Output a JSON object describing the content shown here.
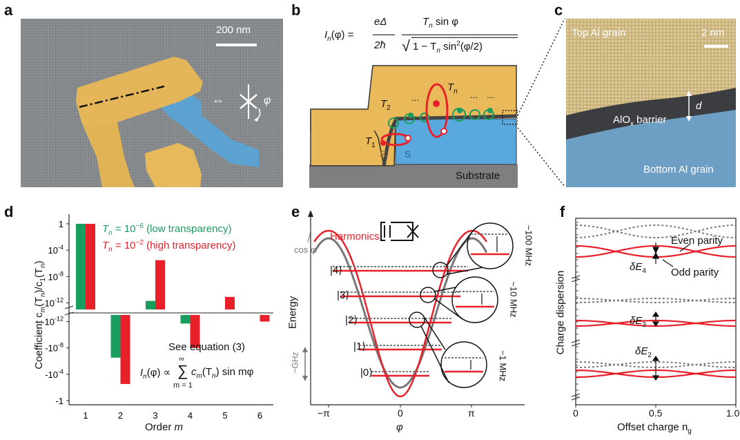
{
  "panels": {
    "a": "a",
    "b": "b",
    "c": "c",
    "d": "d",
    "e": "e",
    "f": "f"
  },
  "panel_a": {
    "scalebar": "200 nm",
    "phi": "φ",
    "double_arrow": "⇔"
  },
  "panel_b": {
    "formula_lhs": "I",
    "formula_lhs_sub": "n",
    "formula_lhs_arg": "(φ) =",
    "formula_num": "eΔ",
    "formula_den": "2ħ",
    "formula_num2": "T",
    "formula_num2_sub": "n",
    "formula_num2_rest": " sin φ",
    "formula_sqrt": "1 − T",
    "formula_sqrt_sub": "n",
    "formula_sqrt_rest": " sin",
    "formula_sqrt_sup": "2",
    "formula_sqrt_end": "(φ/2)",
    "T1": "T",
    "T1_sub": "1",
    "T2": "T",
    "T2_sub": "2",
    "Tn": "T",
    "Tn_sub": "n",
    "dots": "...",
    "S_left": "S",
    "S_right": "S",
    "substrate": "Substrate"
  },
  "panel_c": {
    "top_grain": "Top Al grain",
    "scalebar": "2 nm",
    "barrier_a": "AlO",
    "barrier_sub": "x",
    "barrier_b": " barrier",
    "d": "d",
    "bottom_grain": "Bottom Al grain"
  },
  "panel_d": {
    "ylabel": "Coefficient c",
    "ylabel_sub": "m",
    "ylabel_mid": "(T",
    "ylabel_sub2": "n",
    "ylabel_mid2": ")/c",
    "ylabel_sub3": "1",
    "ylabel_end": "(T",
    "ylabel_sub4": "n",
    "ylabel_close": ")",
    "xlabel": "Order ",
    "xlabel_var": "m",
    "legend_low_pre": "T",
    "legend_low_sub": "n",
    "legend_low_eq": " = 10",
    "legend_low_sup": "−6",
    "legend_low_post": " (low transparency)",
    "legend_high_pre": "T",
    "legend_high_sub": "n",
    "legend_high_eq": " = 10",
    "legend_high_sup": "−2",
    "legend_high_post": " (high transparency)",
    "see_eq": "See equation (3)",
    "sum_lhs": "I",
    "sum_lhs_sub": "n",
    "sum_lhs_rest": "(φ) ∝",
    "sum_top": "∞",
    "sum_sym": "∑",
    "sum_bottom": "m = 1",
    "sum_rhs": "c",
    "sum_rhs_sub": "m",
    "sum_rhs_rest": "(T",
    "sum_rhs_sub2": "n",
    "sum_rhs_end": ") sin mφ"
  },
  "panel_e": {
    "ylabel": "Energy",
    "xlabel": "φ",
    "cos": "cos φ",
    "harmonics": "Harmonics",
    "ghz": "~GHz",
    "mhz100": "~100 MHz",
    "mhz10": "~10 MHz",
    "mhz1": "~1 MHz",
    "levels": [
      "|0⟩",
      "|1⟩",
      "|2⟩",
      "|3⟩",
      "|4⟩"
    ]
  },
  "panel_f": {
    "ylabel": "Charge dispersion",
    "xlabel": "Offset charge n",
    "xlabel_sub": "g",
    "even": "Even parity",
    "odd": "Odd parity",
    "dE4": "δE",
    "dE4_sub": "4",
    "dE3": "δE",
    "dE3_sub": "3",
    "dE2": "δE",
    "dE2_sub": "2"
  },
  "colors": {
    "green": "#1a9e5f",
    "red": "#e8202a",
    "gold": "#e9b95a",
    "blue": "#5aa9de",
    "gray": "#777777"
  },
  "chart_data": [
    {
      "type": "bar",
      "panel": "d",
      "categories": [
        "1",
        "2",
        "3",
        "4",
        "5",
        "6"
      ],
      "yscale": "symmetric-log",
      "yticks": [
        "1",
        "10^-4",
        "10^-8",
        "10^-12",
        "-10^-12",
        "-10^-8",
        "-10^-4",
        "-1"
      ],
      "series": [
        {
          "name": "T_n = 10^-6 (low transparency)",
          "color": "#1a9e5f",
          "values": [
            1,
            -3e-07,
            2e-12,
            -2e-12,
            0,
            0
          ]
        },
        {
          "name": "T_n = 10^-2 (high transparency)",
          "color": "#e8202a",
          "values": [
            1,
            -0.003,
            3e-06,
            -1e-08,
            8e-12,
            -1e-12
          ]
        }
      ],
      "xlabel": "Order m"
    },
    {
      "type": "line",
      "panel": "e",
      "xticks": [
        "−π",
        "0",
        "π"
      ],
      "xlabel": "φ",
      "ylabel": "Energy"
    },
    {
      "type": "line",
      "panel": "f",
      "xticks": [
        "0",
        "0.5",
        "1.0"
      ],
      "xlabel": "Offset charge n_g",
      "ylabel": "Charge dispersion"
    }
  ]
}
